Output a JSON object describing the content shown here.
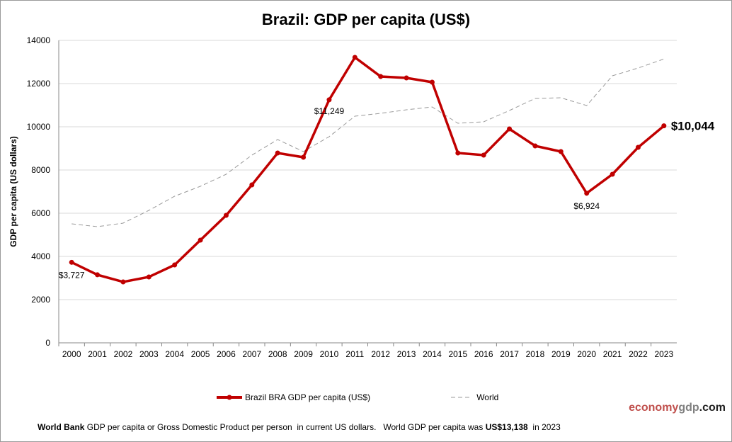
{
  "chart_data": {
    "type": "line",
    "title": "Brazil: GDP per capita (US$)",
    "ylabel": "GDP per capita (US dollars)",
    "xlabel": "",
    "ylim": [
      0,
      14000
    ],
    "yticks": [
      0,
      2000,
      4000,
      6000,
      8000,
      10000,
      12000,
      14000
    ],
    "grid": true,
    "legend_position": "bottom",
    "x": [
      "2000",
      "2001",
      "2002",
      "2003",
      "2004",
      "2005",
      "2006",
      "2007",
      "2008",
      "2009",
      "2010",
      "2011",
      "2012",
      "2013",
      "2014",
      "2015",
      "2016",
      "2017",
      "2018",
      "2019",
      "2020",
      "2021",
      "2022",
      "2023"
    ],
    "series": [
      {
        "name": "Brazil BRA GDP per capita (US$)",
        "color": "#c00000",
        "values": [
          3727,
          3150,
          2820,
          3050,
          3607,
          4754,
          5902,
          7311,
          8787,
          8590,
          11249,
          13213,
          12328,
          12262,
          12066,
          8787,
          8689,
          9902,
          9115,
          8853,
          6924,
          7803,
          9049,
          10044
        ]
      },
      {
        "name": "World",
        "color": "#999999",
        "values": [
          5508,
          5377,
          5541,
          6131,
          6787,
          7246,
          7803,
          8689,
          9410,
          8853,
          9541,
          10492,
          10623,
          10787,
          10918,
          10164,
          10230,
          10754,
          11311,
          11344,
          10984,
          12361,
          12721,
          13138
        ]
      }
    ],
    "annotations": [
      {
        "year": "2000",
        "text": "$3,727"
      },
      {
        "year": "2010",
        "text": "$11,249"
      },
      {
        "year": "2020",
        "text": "$6,924"
      },
      {
        "year": "2023",
        "text": "$10,044"
      }
    ]
  },
  "brand": {
    "part1": "economy",
    "part2": "gdp",
    "part3": ".com",
    "color1": "#c0504d",
    "color2": "#808080"
  },
  "footer": {
    "source": "World Bank",
    "text": " GDP per capita or Gross Domestic Product per person  in current US dollars.   World GDP per capita was ",
    "value": "US$13,138",
    "suffix": "  in 2023"
  }
}
